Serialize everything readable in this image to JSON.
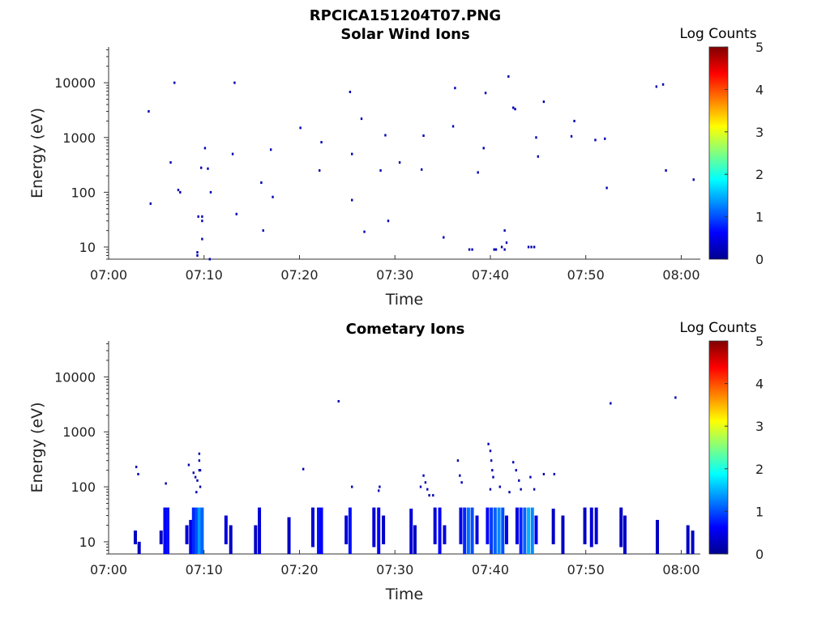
{
  "figure_title": "RPCICA151204T07.PNG",
  "colormap": [
    "#00008f",
    "#0000ff",
    "#0080ff",
    "#00ffff",
    "#80ff80",
    "#ffff00",
    "#ff8000",
    "#ff0000",
    "#800000"
  ],
  "chart_data": [
    {
      "type": "heatmap",
      "title": "Solar Wind Ions",
      "xlabel": "Time",
      "ylabel": "Energy (eV)",
      "x_tick_labels": [
        "07:00",
        "07:10",
        "07:20",
        "07:30",
        "07:40",
        "07:50",
        "08:00"
      ],
      "y_tick_labels": [
        "10",
        "100",
        "1000",
        "10000"
      ],
      "y_scale": "log",
      "xlim": [
        "07:00",
        "08:02"
      ],
      "ylim": [
        6,
        45000
      ],
      "colorbar": {
        "label": "Log Counts",
        "range": [
          0,
          5
        ],
        "tick_labels": [
          "0",
          "1",
          "2",
          "3",
          "4",
          "5"
        ]
      },
      "points": [
        [
          4.2,
          3000,
          0.2
        ],
        [
          4.4,
          62,
          0.2
        ],
        [
          6.5,
          350,
          0.2
        ],
        [
          6.9,
          10000,
          0.2
        ],
        [
          7.3,
          110,
          0.2
        ],
        [
          7.5,
          100,
          0.2
        ],
        [
          9.3,
          8,
          0.2
        ],
        [
          9.3,
          7,
          0.2
        ],
        [
          9.4,
          36,
          0.2
        ],
        [
          9.7,
          280,
          0.2
        ],
        [
          9.8,
          36,
          0.2
        ],
        [
          9.8,
          30,
          0.2
        ],
        [
          9.8,
          14,
          0.2
        ],
        [
          10.1,
          640,
          0.2
        ],
        [
          10.4,
          270,
          0.2
        ],
        [
          10.7,
          100,
          0.2
        ],
        [
          10.6,
          6,
          0.2
        ],
        [
          13.0,
          500,
          0.2
        ],
        [
          13.2,
          10000,
          0.2
        ],
        [
          13.4,
          40,
          0.2
        ],
        [
          16.0,
          150,
          0.2
        ],
        [
          16.2,
          20,
          0.2
        ],
        [
          17.0,
          600,
          0.2
        ],
        [
          17.2,
          82,
          0.2
        ],
        [
          20.1,
          1500,
          0.2
        ],
        [
          22.1,
          250,
          0.2
        ],
        [
          22.3,
          820,
          0.2
        ],
        [
          25.3,
          6800,
          0.2
        ],
        [
          25.5,
          500,
          0.2
        ],
        [
          25.5,
          72,
          0.2
        ],
        [
          26.5,
          2200,
          0.2
        ],
        [
          26.8,
          19,
          0.2
        ],
        [
          28.5,
          250,
          0.2
        ],
        [
          29.0,
          1100,
          0.2
        ],
        [
          29.3,
          30,
          0.2
        ],
        [
          30.5,
          350,
          0.2
        ],
        [
          32.8,
          260,
          0.2
        ],
        [
          33.0,
          1080,
          0.2
        ],
        [
          35.1,
          15,
          0.2
        ],
        [
          36.1,
          1600,
          0.2
        ],
        [
          36.3,
          8000,
          0.2
        ],
        [
          37.8,
          9,
          0.2
        ],
        [
          38.1,
          9,
          0.2
        ],
        [
          38.7,
          230,
          0.2
        ],
        [
          39.3,
          640,
          0.2
        ],
        [
          39.5,
          6500,
          0.2
        ],
        [
          40.4,
          9,
          0.2
        ],
        [
          40.6,
          9,
          0.2
        ],
        [
          41.2,
          10,
          0.2
        ],
        [
          41.5,
          9,
          0.2
        ],
        [
          41.7,
          12,
          0.2
        ],
        [
          41.9,
          13000,
          0.2
        ],
        [
          41.5,
          20,
          0.2
        ],
        [
          42.4,
          3500,
          0.2
        ],
        [
          42.6,
          3300,
          0.2
        ],
        [
          44.0,
          10,
          0.2
        ],
        [
          44.3,
          10,
          0.2
        ],
        [
          44.6,
          10,
          0.2
        ],
        [
          44.8,
          1000,
          0.2
        ],
        [
          45.0,
          450,
          0.2
        ],
        [
          45.6,
          4500,
          0.2
        ],
        [
          48.5,
          1050,
          0.2
        ],
        [
          48.8,
          2000,
          0.2
        ],
        [
          51.0,
          900,
          0.2
        ],
        [
          52.0,
          950,
          0.2
        ],
        [
          52.2,
          120,
          0.2
        ],
        [
          57.4,
          8500,
          0.2
        ],
        [
          58.1,
          9300,
          0.2
        ],
        [
          58.4,
          250,
          0.2
        ],
        [
          61.3,
          170,
          0.2
        ]
      ]
    },
    {
      "type": "heatmap",
      "title": "Cometary Ions",
      "xlabel": "Time",
      "ylabel": "Energy (eV)",
      "x_tick_labels": [
        "07:00",
        "07:10",
        "07:20",
        "07:30",
        "07:40",
        "07:50",
        "08:00"
      ],
      "y_tick_labels": [
        "10",
        "100",
        "1000",
        "10000"
      ],
      "y_scale": "log",
      "xlim": [
        "07:00",
        "08:02"
      ],
      "ylim": [
        6,
        45000
      ],
      "colorbar": {
        "label": "Log Counts",
        "range": [
          0,
          5
        ],
        "tick_labels": [
          "0",
          "1",
          "2",
          "3",
          "4",
          "5"
        ]
      },
      "points": [
        [
          2.9,
          230,
          0.2
        ],
        [
          3.1,
          170,
          0.2
        ],
        [
          6.0,
          115,
          0.2
        ],
        [
          8.4,
          250,
          0.2
        ],
        [
          8.9,
          180,
          0.2
        ],
        [
          9.1,
          150,
          0.2
        ],
        [
          9.3,
          130,
          0.2
        ],
        [
          9.5,
          200,
          0.2
        ],
        [
          9.5,
          300,
          0.2
        ],
        [
          9.5,
          400,
          0.2
        ],
        [
          9.6,
          200,
          0.2
        ],
        [
          9.6,
          100,
          0.2
        ],
        [
          9.2,
          80,
          0.2
        ],
        [
          20.4,
          210,
          0.2
        ],
        [
          24.1,
          3600,
          0.2
        ],
        [
          25.5,
          100,
          0.2
        ],
        [
          28.3,
          85,
          0.2
        ],
        [
          28.4,
          100,
          0.2
        ],
        [
          32.7,
          100,
          0.2
        ],
        [
          33.0,
          160,
          0.2
        ],
        [
          33.2,
          120,
          0.2
        ],
        [
          33.4,
          90,
          0.2
        ],
        [
          33.6,
          70,
          0.2
        ],
        [
          34.0,
          70,
          0.2
        ],
        [
          36.6,
          300,
          0.2
        ],
        [
          36.8,
          160,
          0.2
        ],
        [
          37.0,
          120,
          0.2
        ],
        [
          39.8,
          600,
          0.2
        ],
        [
          40.0,
          450,
          0.2
        ],
        [
          40.1,
          300,
          0.2
        ],
        [
          40.2,
          200,
          0.2
        ],
        [
          40.3,
          150,
          0.2
        ],
        [
          40.0,
          90,
          0.2
        ],
        [
          41.0,
          100,
          0.2
        ],
        [
          42.0,
          80,
          0.2
        ],
        [
          42.4,
          280,
          0.2
        ],
        [
          42.7,
          200,
          0.2
        ],
        [
          43.0,
          130,
          0.2
        ],
        [
          43.2,
          90,
          0.2
        ],
        [
          44.2,
          150,
          0.2
        ],
        [
          44.6,
          90,
          0.2
        ],
        [
          45.6,
          170,
          0.2
        ],
        [
          46.7,
          170,
          0.2
        ],
        [
          52.6,
          3300,
          0.2
        ],
        [
          59.4,
          4200,
          0.2
        ]
      ],
      "columns": [
        [
          2.8,
          9,
          16,
          0.3
        ],
        [
          3.2,
          6,
          10,
          0.3
        ],
        [
          5.5,
          9,
          16,
          0.3
        ],
        [
          5.9,
          6,
          42,
          0.6
        ],
        [
          6.2,
          6,
          42,
          0.7
        ],
        [
          8.2,
          9,
          20,
          0.4
        ],
        [
          8.6,
          6,
          25,
          0.5
        ],
        [
          8.9,
          6,
          42,
          0.8
        ],
        [
          9.2,
          6,
          42,
          1.0
        ],
        [
          9.5,
          6,
          42,
          1.4
        ],
        [
          9.8,
          6,
          42,
          1.1
        ],
        [
          12.3,
          9,
          30,
          0.4
        ],
        [
          12.8,
          6,
          20,
          0.3
        ],
        [
          15.4,
          6,
          20,
          0.3
        ],
        [
          15.8,
          6,
          42,
          0.4
        ],
        [
          18.9,
          6,
          28,
          0.3
        ],
        [
          21.4,
          8,
          42,
          0.4
        ],
        [
          22.0,
          6,
          42,
          0.7
        ],
        [
          22.3,
          6,
          42,
          0.6
        ],
        [
          24.9,
          9,
          30,
          0.4
        ],
        [
          25.3,
          6,
          42,
          0.7
        ],
        [
          27.8,
          8,
          42,
          0.4
        ],
        [
          28.3,
          6,
          42,
          0.6
        ],
        [
          28.8,
          9,
          30,
          0.3
        ],
        [
          31.7,
          6,
          40,
          0.4
        ],
        [
          32.1,
          6,
          20,
          0.3
        ],
        [
          34.2,
          9,
          42,
          0.4
        ],
        [
          34.7,
          6,
          42,
          0.6
        ],
        [
          35.2,
          9,
          20,
          0.4
        ],
        [
          36.9,
          9,
          42,
          0.5
        ],
        [
          37.3,
          6,
          42,
          0.8
        ],
        [
          37.7,
          6,
          42,
          1.2
        ],
        [
          38.1,
          6,
          42,
          1.0
        ],
        [
          38.6,
          9,
          30,
          0.4
        ],
        [
          39.7,
          9,
          42,
          0.6
        ],
        [
          40.1,
          6,
          42,
          0.9
        ],
        [
          40.5,
          6,
          42,
          1.1
        ],
        [
          40.9,
          6,
          42,
          1.3
        ],
        [
          41.3,
          6,
          42,
          1.0
        ],
        [
          41.7,
          9,
          30,
          0.5
        ],
        [
          42.8,
          9,
          42,
          0.5
        ],
        [
          43.2,
          6,
          42,
          0.8
        ],
        [
          43.6,
          6,
          42,
          1.1
        ],
        [
          44.0,
          6,
          42,
          1.5
        ],
        [
          44.4,
          6,
          42,
          1.3
        ],
        [
          44.8,
          9,
          30,
          0.5
        ],
        [
          46.6,
          9,
          40,
          0.3
        ],
        [
          47.6,
          6,
          30,
          0.3
        ],
        [
          49.9,
          9,
          42,
          0.3
        ],
        [
          50.6,
          8,
          42,
          0.4
        ],
        [
          51.1,
          9,
          42,
          0.4
        ],
        [
          53.7,
          8,
          42,
          0.3
        ],
        [
          54.1,
          6,
          30,
          0.3
        ],
        [
          57.5,
          6,
          25,
          0.3
        ],
        [
          60.7,
          6,
          20,
          0.3
        ],
        [
          61.2,
          6,
          16,
          0.3
        ]
      ]
    }
  ]
}
